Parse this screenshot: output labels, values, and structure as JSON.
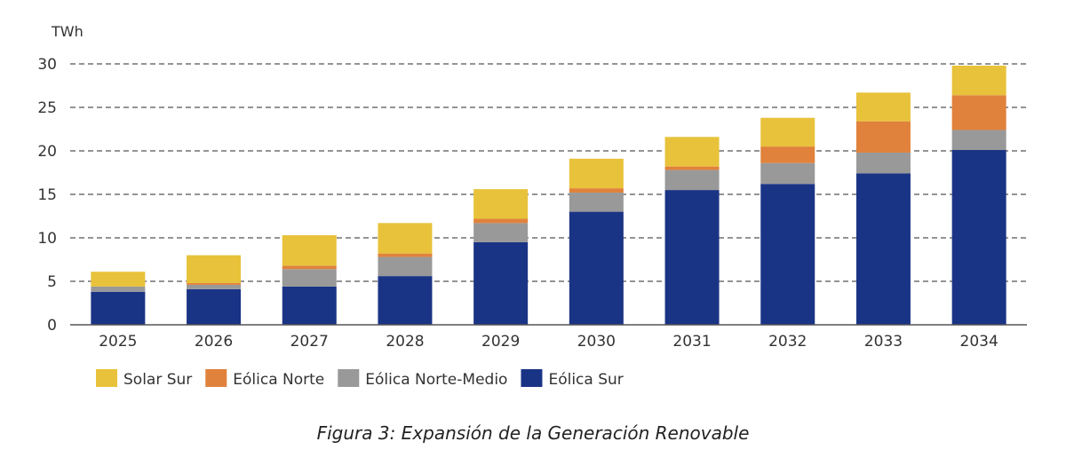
{
  "caption": "Figura 3: Expansión de la Generación Renovable",
  "chart_data": {
    "type": "bar",
    "stacked": true,
    "unit_label": "TWh",
    "categories": [
      "2025",
      "2026",
      "2027",
      "2028",
      "2029",
      "2030",
      "2031",
      "2032",
      "2033",
      "2034"
    ],
    "series": [
      {
        "name": "Eólica Sur",
        "color": "#1a3485",
        "values": [
          3.8,
          4.1,
          4.4,
          5.6,
          9.5,
          13.0,
          15.5,
          16.2,
          17.4,
          20.1
        ]
      },
      {
        "name": "Eólica Norte-Medio",
        "color": "#999999",
        "values": [
          0.6,
          0.5,
          2.0,
          2.2,
          2.2,
          2.2,
          2.3,
          2.4,
          2.4,
          2.3
        ]
      },
      {
        "name": "Eólica Norte",
        "color": "#e0823c",
        "values": [
          0.0,
          0.2,
          0.4,
          0.4,
          0.5,
          0.5,
          0.4,
          1.9,
          3.6,
          4.0
        ]
      },
      {
        "name": "Solar Sur",
        "color": "#e8c23a",
        "values": [
          1.7,
          3.2,
          3.5,
          3.5,
          3.4,
          3.4,
          3.4,
          3.3,
          3.3,
          3.4
        ]
      }
    ],
    "legend_order": [
      "Solar Sur",
      "Eólica Norte",
      "Eólica Norte-Medio",
      "Eólica Sur"
    ],
    "ylim": [
      0,
      30
    ],
    "yticks": [
      0,
      5,
      10,
      15,
      20,
      25,
      30
    ],
    "grid": "dashed horizontal",
    "legend_position": "bottom-left"
  }
}
